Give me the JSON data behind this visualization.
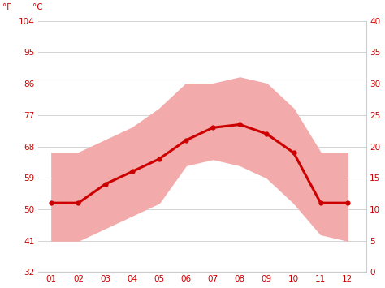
{
  "months": [
    1,
    2,
    3,
    4,
    5,
    6,
    7,
    8,
    9,
    10,
    11,
    12
  ],
  "month_labels": [
    "01",
    "02",
    "03",
    "04",
    "05",
    "06",
    "07",
    "08",
    "09",
    "10",
    "11",
    "12"
  ],
  "avg_temp_c": [
    11,
    11,
    14,
    16,
    18,
    21,
    23,
    23.5,
    22,
    19,
    11,
    11
  ],
  "max_temp_c": [
    19,
    19,
    21,
    23,
    26,
    30,
    30,
    31,
    30,
    26,
    19,
    19
  ],
  "min_temp_c": [
    5,
    5,
    7,
    9,
    11,
    17,
    18,
    17,
    15,
    11,
    6,
    5
  ],
  "ylim_c": [
    0,
    40
  ],
  "yticks_c": [
    0,
    5,
    10,
    15,
    20,
    25,
    30,
    35,
    40
  ],
  "yticks_f": [
    32,
    41,
    50,
    59,
    68,
    77,
    86,
    95,
    104
  ],
  "line_color": "#cc0000",
  "band_color": "#f2aaaa",
  "grid_color": "#cccccc",
  "bg_color": "#ffffff",
  "label_color": "#cc0000",
  "axis_label_f": "°F",
  "axis_label_c": "°C"
}
